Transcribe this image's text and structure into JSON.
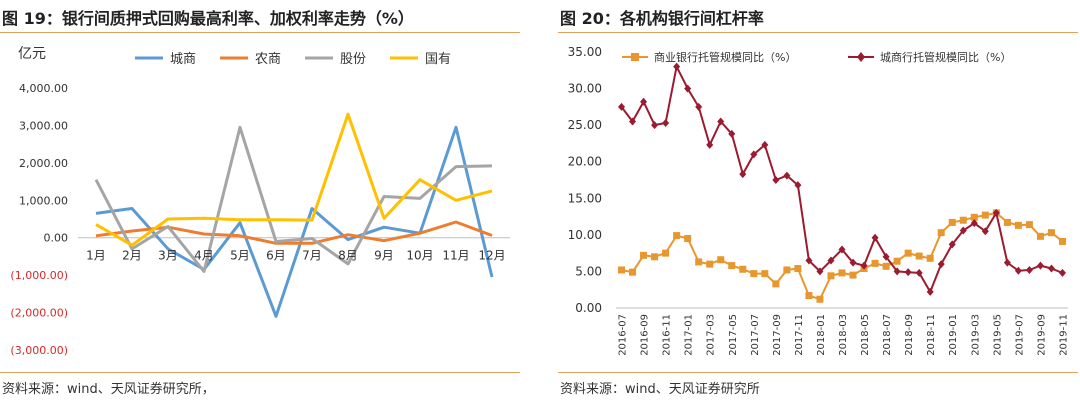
{
  "panels": {
    "left": {
      "title": "图 19：银行间质押式回购最高利率、加权利率走势（%）",
      "source": "资料来源：wind、天风证券研究所，"
    },
    "right": {
      "title": "图 20：各机构银行间杠杆率",
      "source": "资料来源：wind、天风证券研究所"
    }
  },
  "colors": {
    "rule": "#e3a25a",
    "negative_label": "#d62a2a",
    "城商": "#5b9bd5",
    "农商": "#ed7d31",
    "股份": "#a5a5a5",
    "国有": "#ffc000",
    "商业银行": "#e8962e",
    "城商行": "#9b1b30"
  },
  "chart_data": [
    {
      "type": "line",
      "unit_label": "亿元",
      "categories": [
        "1月",
        "2月",
        "3月",
        "4月",
        "5月",
        "6月",
        "7月",
        "8月",
        "9月",
        "10月",
        "11月",
        "12月"
      ],
      "y_ticks": [
        "4,000.00",
        "3,000.00",
        "2,000.00",
        "1,000.00",
        "0.00",
        "(1,000.00)",
        "(2,000.00)",
        "(3,000.00)"
      ],
      "ylim": [
        -3000,
        4000
      ],
      "grid": false,
      "legend_position": "top",
      "series": [
        {
          "name": "城商",
          "values": [
            650,
            780,
            -300,
            -850,
            400,
            -2100,
            780,
            -50,
            280,
            120,
            2950,
            -1050
          ]
        },
        {
          "name": "农商",
          "values": [
            50,
            180,
            280,
            100,
            50,
            -150,
            -150,
            80,
            -80,
            120,
            420,
            60
          ]
        },
        {
          "name": "股份",
          "values": [
            1550,
            -300,
            300,
            -900,
            2950,
            -100,
            -20,
            -700,
            1100,
            1050,
            1900,
            1920
          ]
        },
        {
          "name": "国有",
          "values": [
            350,
            -200,
            500,
            520,
            480,
            480,
            470,
            3300,
            520,
            1550,
            1000,
            1250
          ]
        }
      ]
    },
    {
      "type": "line",
      "x": [
        "2016-07",
        "2016-08",
        "2016-09",
        "2016-10",
        "2016-11",
        "2016-12",
        "2017-01",
        "2017-02",
        "2017-03",
        "2017-04",
        "2017-05",
        "2017-06",
        "2017-07",
        "2017-08",
        "2017-09",
        "2017-10",
        "2017-11",
        "2017-12",
        "2018-01",
        "2018-02",
        "2018-03",
        "2018-04",
        "2018-05",
        "2018-06",
        "2018-07",
        "2018-08",
        "2018-09",
        "2018-10",
        "2018-11",
        "2018-12",
        "2019-01",
        "2019-02",
        "2019-03",
        "2019-04",
        "2019-05",
        "2019-06",
        "2019-07",
        "2019-08",
        "2019-09",
        "2019-10",
        "2019-11"
      ],
      "x_tick_labels": [
        "2016-07",
        "2016-09",
        "2016-11",
        "2017-01",
        "2017-03",
        "2017-05",
        "2017-07",
        "2017-09",
        "2017-11",
        "2018-01",
        "2018-03",
        "2018-05",
        "2018-07",
        "2018-09",
        "2018-11",
        "2019-01",
        "2019-03",
        "2019-05",
        "2019-07",
        "2019-09",
        "2019-11"
      ],
      "y_ticks": [
        "35.00",
        "30.00",
        "25.00",
        "20.00",
        "15.00",
        "10.00",
        "5.00",
        "0.00"
      ],
      "ylim": [
        0,
        35
      ],
      "grid": false,
      "legend_position": "top",
      "series": [
        {
          "name": "商业银行托管规模同比（%）",
          "marker": "square",
          "values": [
            5.2,
            4.9,
            7.2,
            7.0,
            7.5,
            9.9,
            9.5,
            6.3,
            6.0,
            6.6,
            5.8,
            5.3,
            4.7,
            4.7,
            3.3,
            5.2,
            5.4,
            1.7,
            1.2,
            4.4,
            4.8,
            4.5,
            5.4,
            6.1,
            5.7,
            6.4,
            7.5,
            7.1,
            6.8,
            10.3,
            11.7,
            12.0,
            12.4,
            12.7,
            13.0,
            11.7,
            11.3,
            11.4,
            9.8,
            10.3,
            9.1
          ]
        },
        {
          "name": "城商行托管规模同比（%）",
          "marker": "diamond",
          "values": [
            27.5,
            25.5,
            28.2,
            25.0,
            25.3,
            33.0,
            30.0,
            27.5,
            22.3,
            25.5,
            23.8,
            18.3,
            21.0,
            22.3,
            17.5,
            18.1,
            16.8,
            6.5,
            5.0,
            6.5,
            8.0,
            6.2,
            5.8,
            9.6,
            7.0,
            5.0,
            4.9,
            4.8,
            2.2,
            6.0,
            8.7,
            10.6,
            11.6,
            10.5,
            13.0,
            6.2,
            5.1,
            5.2,
            5.8,
            5.4,
            4.8
          ]
        }
      ]
    }
  ]
}
